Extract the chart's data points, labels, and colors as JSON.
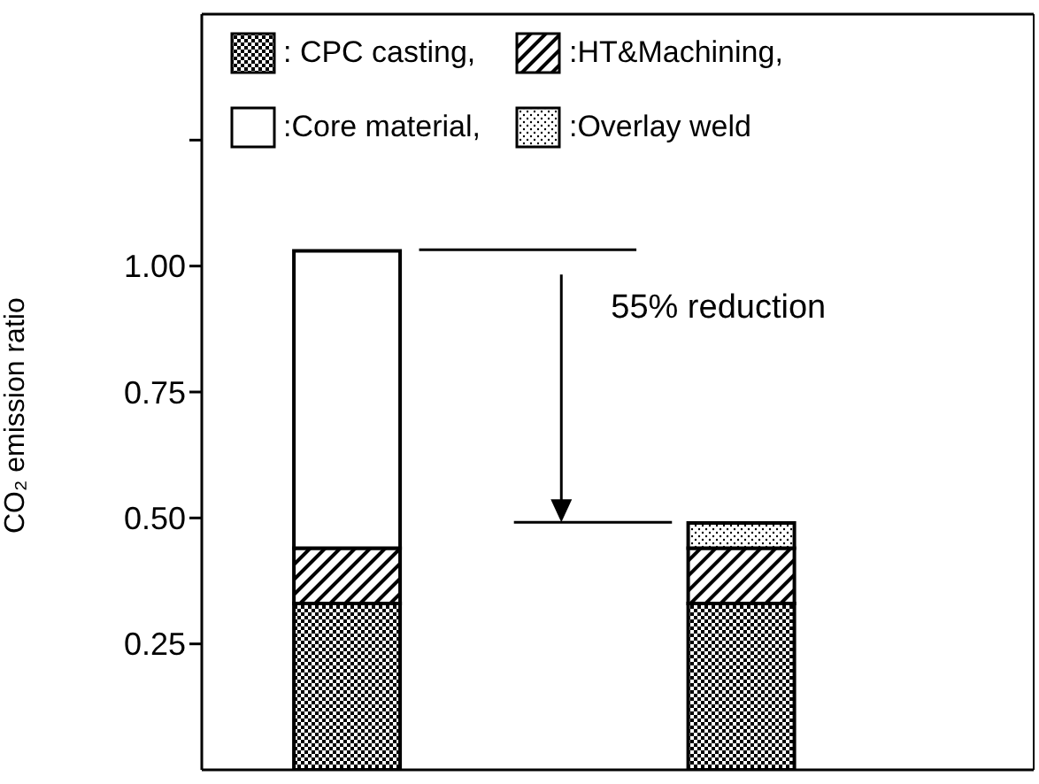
{
  "chart_data": {
    "type": "bar",
    "stacked": true,
    "categories": [
      null,
      null
    ],
    "series": [
      {
        "name": ": CPC casting,",
        "color": "#000000",
        "values": [
          0.33,
          0.33
        ]
      },
      {
        "name": ":HT&Machining,",
        "color": "#000000",
        "values": [
          0.11,
          0.11
        ]
      },
      {
        "name": ":Core material,",
        "color": "#000000",
        "values": [
          0.59,
          0
        ]
      },
      {
        "name": ":Overlay weld",
        "color": "#000000",
        "values": [
          0,
          0.05
        ]
      }
    ],
    "ylabel": "CO₂ emission ratio",
    "ylim": [
      0,
      1.5
    ],
    "yticks": [
      {
        "value": 0.25,
        "label": "0.25"
      },
      {
        "value": 0.5,
        "label": "0.50"
      },
      {
        "value": 0.75,
        "label": "0.75"
      },
      {
        "value": 1.0,
        "label": "1.00"
      },
      {
        "value": 1.25,
        "label": null
      }
    ],
    "annotations": [
      "55% reduction"
    ],
    "legend": "top"
  }
}
